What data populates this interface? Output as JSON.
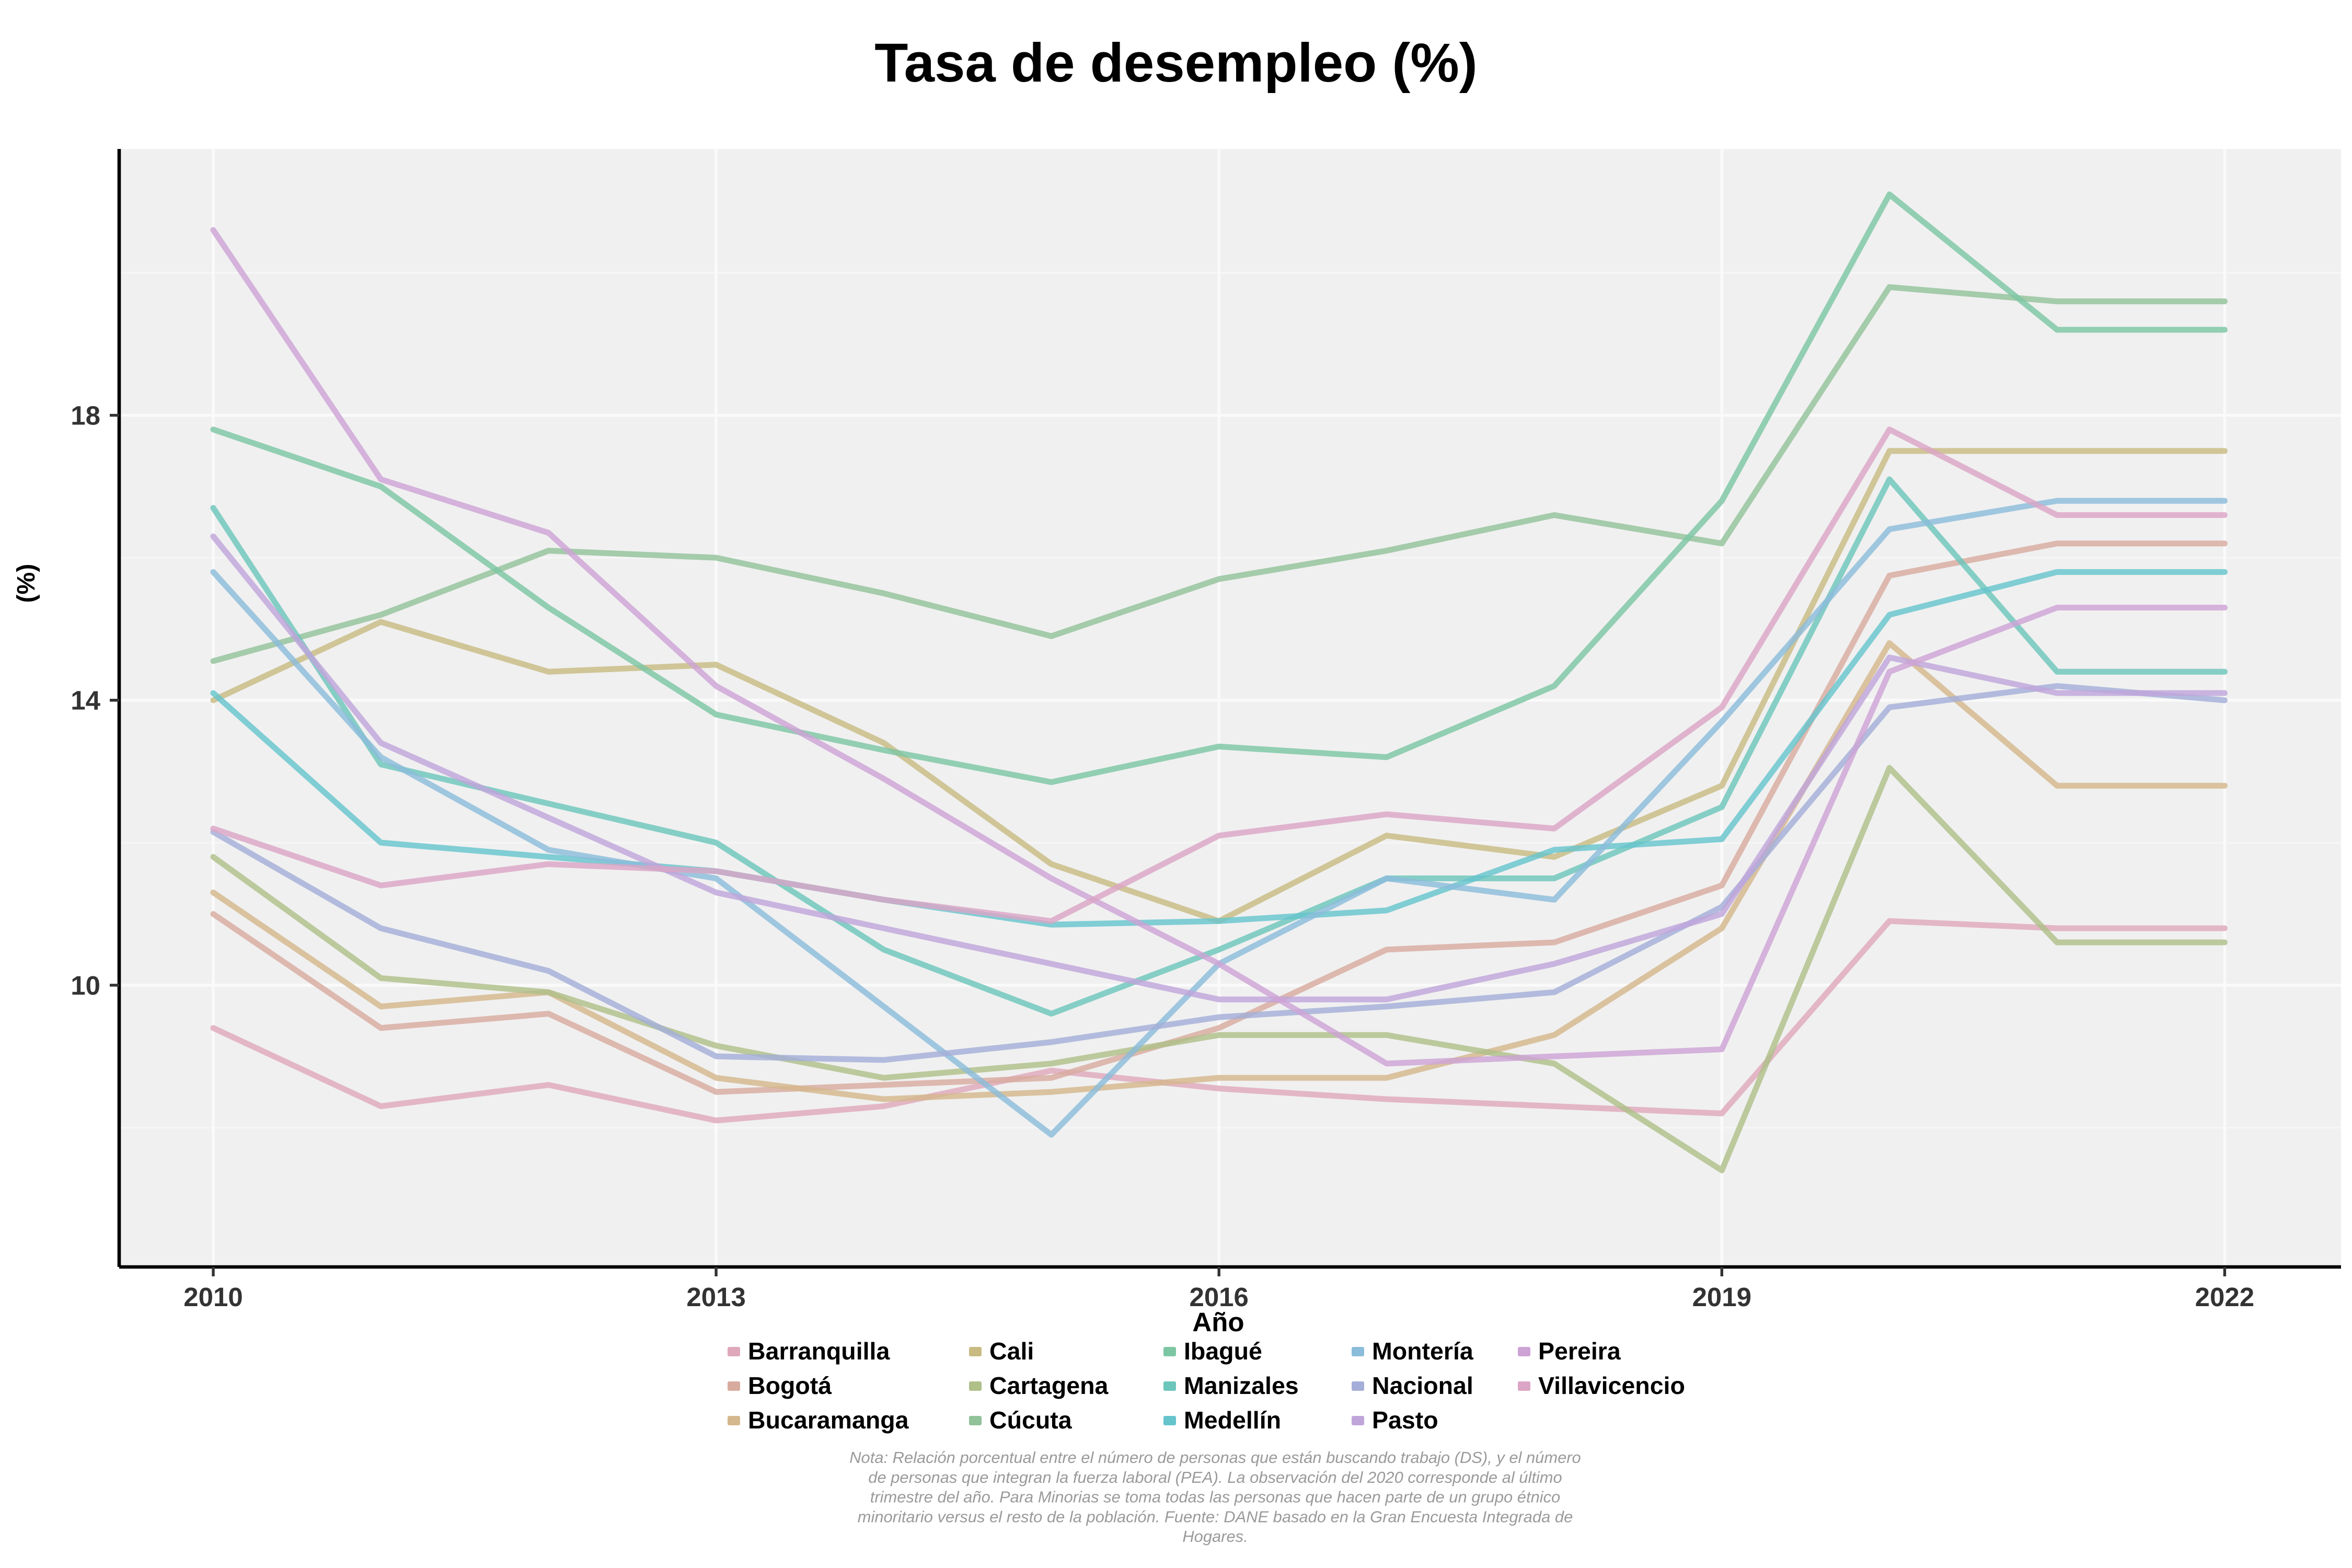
{
  "title": "Tasa de desempleo (%)",
  "x_axis": {
    "label": "Año",
    "ticks": [
      2010,
      2013,
      2016,
      2019,
      2022
    ]
  },
  "y_axis": {
    "label": "(%)",
    "ticks": [
      10,
      14,
      18
    ],
    "minor_ticks": [
      8,
      12,
      16,
      20
    ]
  },
  "note_lines": [
    "Nota: Relación porcentual entre el número de personas que están buscando trabajo (DS), y el número",
    "de personas que integran la fuerza laboral (PEA). La observación del 2020 corresponde al último",
    "trimestre del año. Para Minorias se toma todas las personas que hacen parte de un grupo étnico",
    "minoritario versus el resto de la población. Fuente: DANE basado en la Gran Encuesta Integrada de",
    "Hogares."
  ],
  "colors": {
    "panel_bg": "#f0f0f0",
    "grid_major": "#fafafa",
    "grid_minor": "#f6f6f6",
    "axis_line": "#000000",
    "tick_text": "#333333",
    "note_text": "#9a9a9a"
  },
  "chart_data": {
    "type": "line",
    "x": [
      2010,
      2011,
      2012,
      2013,
      2014,
      2015,
      2016,
      2017,
      2018,
      2019,
      2020,
      2021,
      2022
    ],
    "title": "Tasa de desempleo (%)",
    "xlabel": "Año",
    "ylabel": "(%)",
    "ylim": [
      6.0,
      21.8
    ],
    "grid": true,
    "legend_position": "bottom",
    "legend_columns": 5,
    "series": [
      {
        "name": "Barranquilla",
        "color": "#dfa8bb",
        "values": [
          9.4,
          8.3,
          8.6,
          8.1,
          8.3,
          8.8,
          8.55,
          8.4,
          8.3,
          8.2,
          10.9,
          10.8,
          10.8
        ]
      },
      {
        "name": "Bogotá",
        "color": "#d8ab9f",
        "values": [
          11.0,
          9.4,
          9.6,
          8.5,
          8.6,
          8.7,
          9.4,
          10.5,
          10.6,
          11.4,
          15.75,
          16.2,
          16.2
        ]
      },
      {
        "name": "Bucaramanga",
        "color": "#d4b78c",
        "values": [
          11.3,
          9.7,
          9.9,
          8.7,
          8.4,
          8.5,
          8.7,
          8.7,
          9.3,
          10.8,
          14.8,
          12.8,
          12.8
        ]
      },
      {
        "name": "Cali",
        "color": "#c8bb82",
        "values": [
          14.0,
          15.1,
          14.4,
          14.5,
          13.4,
          11.7,
          10.9,
          12.1,
          11.8,
          12.8,
          17.5,
          17.5,
          17.5
        ]
      },
      {
        "name": "Cartagena",
        "color": "#afc089",
        "values": [
          11.8,
          10.1,
          9.9,
          9.15,
          8.7,
          8.9,
          9.3,
          9.3,
          8.9,
          7.4,
          13.05,
          10.6,
          10.6
        ]
      },
      {
        "name": "Cúcuta",
        "color": "#92c29a",
        "values": [
          14.55,
          15.2,
          16.1,
          16.0,
          15.5,
          14.9,
          15.7,
          16.1,
          16.6,
          16.2,
          19.8,
          19.6,
          19.6
        ]
      },
      {
        "name": "Ibagué",
        "color": "#7dc6a3",
        "values": [
          17.8,
          17.0,
          15.3,
          13.8,
          13.3,
          12.85,
          13.35,
          13.2,
          14.2,
          16.8,
          21.1,
          19.2,
          19.2
        ]
      },
      {
        "name": "Manizales",
        "color": "#6dc6bb",
        "values": [
          16.7,
          13.1,
          12.55,
          12.0,
          10.5,
          9.6,
          10.5,
          11.5,
          11.5,
          12.5,
          17.1,
          14.4,
          14.4
        ]
      },
      {
        "name": "Medellín",
        "color": "#66c4cd",
        "values": [
          14.1,
          12.0,
          11.8,
          11.6,
          11.2,
          10.85,
          10.9,
          11.05,
          11.9,
          12.05,
          15.2,
          15.8,
          15.8
        ]
      },
      {
        "name": "Montería",
        "color": "#8bbcda",
        "values": [
          15.8,
          13.2,
          11.9,
          11.5,
          9.7,
          7.9,
          10.3,
          11.5,
          11.2,
          13.7,
          16.4,
          16.8,
          16.8
        ]
      },
      {
        "name": "Nacional",
        "color": "#a4aed8",
        "values": [
          12.15,
          10.8,
          10.2,
          9.0,
          8.95,
          9.2,
          9.55,
          9.7,
          9.9,
          11.1,
          13.9,
          14.2,
          14.0
        ]
      },
      {
        "name": "Pasto",
        "color": "#c0a5da",
        "values": [
          16.3,
          13.4,
          12.35,
          11.3,
          10.8,
          10.3,
          9.8,
          9.8,
          10.3,
          11.0,
          14.6,
          14.1,
          14.1
        ]
      },
      {
        "name": "Pereira",
        "color": "#cda3d5",
        "values": [
          20.6,
          17.1,
          16.35,
          14.2,
          12.9,
          11.5,
          10.3,
          8.9,
          9.0,
          9.1,
          14.4,
          15.3,
          15.3
        ]
      },
      {
        "name": "Villavicencio",
        "color": "#dba5c6",
        "values": [
          12.2,
          11.4,
          11.7,
          11.6,
          11.2,
          10.9,
          12.1,
          12.4,
          12.2,
          13.9,
          17.8,
          16.6,
          16.6
        ]
      }
    ]
  }
}
